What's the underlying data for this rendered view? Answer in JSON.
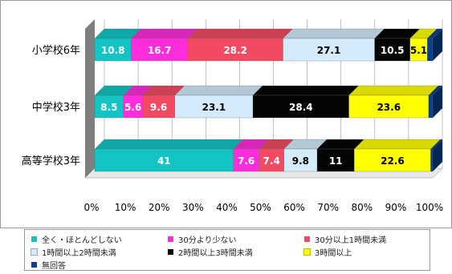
{
  "chart_data": {
    "type": "bar",
    "orientation": "horizontal",
    "stacked": true,
    "categories": [
      "小学校6年",
      "中学校3年",
      "高等学校3年"
    ],
    "x_ticks": [
      "0%",
      "10%",
      "20%",
      "30%",
      "40%",
      "50%",
      "60%",
      "70%",
      "80%",
      "90%",
      "100%"
    ],
    "xlim": [
      0,
      100
    ],
    "legend_position": "bottom",
    "series": [
      {
        "name": "全く・ほとんどしない",
        "color": "#13C4C4",
        "values": [
          10.8,
          8.5,
          41
        ],
        "labels": [
          "10.8",
          "8.5",
          "41"
        ]
      },
      {
        "name": "30分より少ない",
        "color": "#FF2DDC",
        "values": [
          16.7,
          5.6,
          7.6
        ],
        "labels": [
          "16.7",
          "5.6",
          "7.6"
        ]
      },
      {
        "name": "30分以上1時間未満",
        "color": "#F14A62",
        "values": [
          28.2,
          9.6,
          7.4
        ],
        "labels": [
          "28.2",
          "9.6",
          "7.4"
        ]
      },
      {
        "name": "1時間以上2時間未満",
        "color": "#D3EBFA",
        "values": [
          27.1,
          23.1,
          9.8
        ],
        "labels": [
          "27.1",
          "23.1",
          "9.8"
        ]
      },
      {
        "name": "2時間以上3時間未満",
        "color": "#050505",
        "values": [
          10.5,
          28.4,
          11
        ],
        "labels": [
          "10.5",
          "28.4",
          "11"
        ]
      },
      {
        "name": "3時間以上",
        "color": "#FFFF00",
        "values": [
          5.1,
          23.6,
          22.6
        ],
        "labels": [
          "5.1",
          "23.6",
          "22.6"
        ]
      },
      {
        "name": "無回答",
        "color": "#0A3F8C",
        "values": [
          1.6,
          1.2,
          0.6
        ],
        "labels": [
          "",
          "",
          ""
        ]
      }
    ]
  }
}
